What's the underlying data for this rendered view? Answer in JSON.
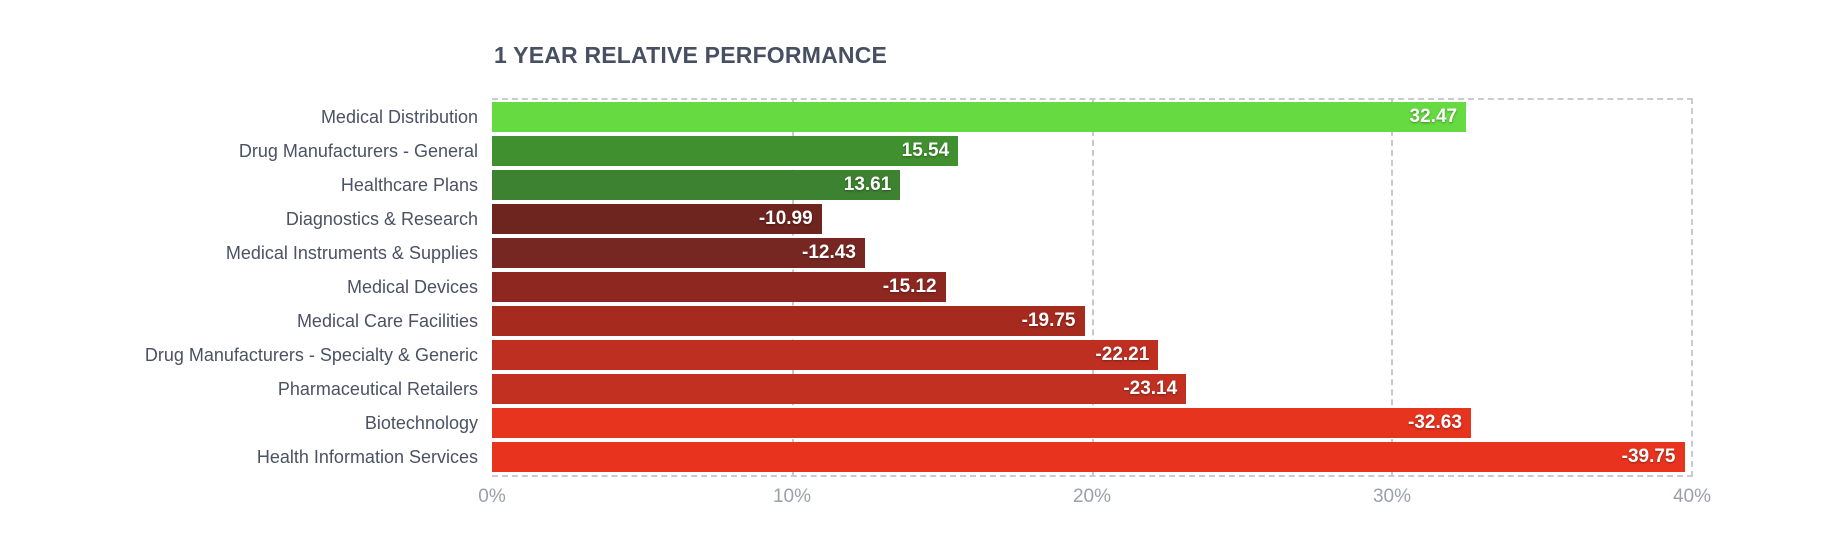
{
  "chart_data": {
    "type": "bar",
    "orientation": "horizontal",
    "title": "1 YEAR RELATIVE PERFORMANCE",
    "categories": [
      "Medical Distribution",
      "Drug Manufacturers - General",
      "Healthcare Plans",
      "Diagnostics & Research",
      "Medical Instruments & Supplies",
      "Medical Devices",
      "Medical Care Facilities",
      "Drug Manufacturers - Specialty & Generic",
      "Pharmaceutical Retailers",
      "Biotechnology",
      "Health Information Services"
    ],
    "values": [
      32.47,
      15.54,
      13.61,
      -10.99,
      -12.43,
      -15.12,
      -19.75,
      -22.21,
      -23.14,
      -32.63,
      -39.75
    ],
    "value_labels": [
      "32.47",
      "15.54",
      "13.61",
      "-10.99",
      "-12.43",
      "-15.12",
      "-19.75",
      "-22.21",
      "-23.14",
      "-32.63",
      "-39.75"
    ],
    "bar_colors": [
      "#65da41",
      "#41902f",
      "#3d8230",
      "#6e241f",
      "#772721",
      "#8f2721",
      "#a62a1e",
      "#bf2f21",
      "#c23022",
      "#e6341f",
      "#e8341e"
    ],
    "xlabel": "",
    "ylabel": "",
    "x_axis": {
      "tick_labels": [
        "0%",
        "10%",
        "20%",
        "30%",
        "40%"
      ],
      "tick_values": [
        0,
        10,
        20,
        30,
        40
      ],
      "min": 0,
      "max": 40,
      "note": "bar length encodes absolute value of performance"
    },
    "gridlines_at": [
      10,
      20,
      30
    ],
    "legend": "none"
  },
  "colors": {
    "background": "#ffffff",
    "title_text": "#474f62",
    "category_text": "#4a5263",
    "axis_text": "#9aa0ab",
    "value_text": "#ffffff",
    "grid": "#c4c8cf",
    "border": "#c9cbd0"
  }
}
